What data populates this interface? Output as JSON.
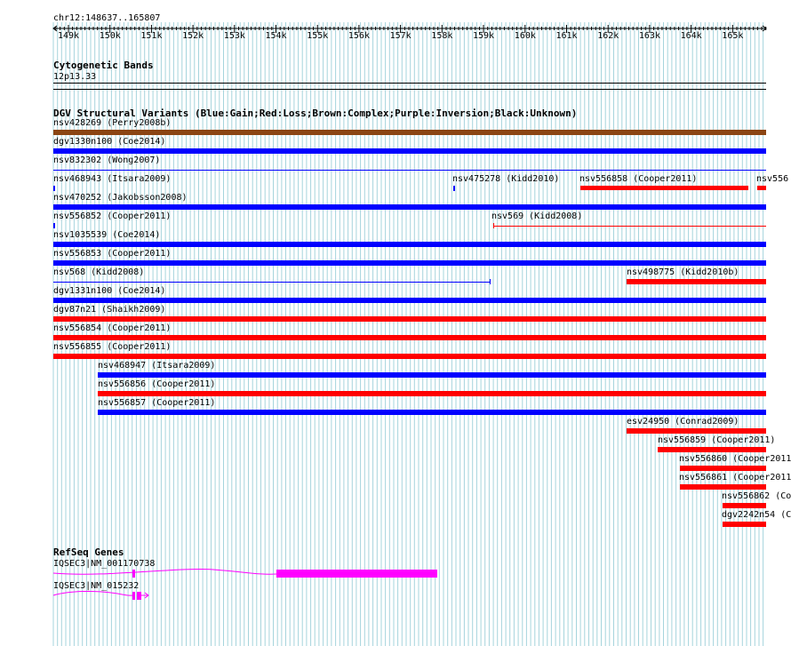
{
  "colors": {
    "gain": "#0000ff",
    "loss": "#ff0000",
    "complex": "#8b4513",
    "gene": "#ff00ff",
    "grid": "#a6d4dc"
  },
  "ruler": {
    "location": "chr12:148637..165807",
    "ticks": [
      "149k",
      "150k",
      "151k",
      "152k",
      "153k",
      "154k",
      "155k",
      "156k",
      "157k",
      "158k",
      "159k",
      "160k",
      "161k",
      "162k",
      "163k",
      "164k",
      "165k"
    ]
  },
  "cytoband": {
    "title": "Cytogenetic Bands",
    "band": "12p13.33"
  },
  "dgv": {
    "title": "DGV Structural Variants (Blue:Gain;Red:Loss;Brown:Complex;Purple:Inversion;Black:Unknown)",
    "variants": [
      {
        "label": "nsv428269 (Perry2008b)",
        "type": "complex"
      },
      {
        "label": "dgv1330n100 (Coe2014)",
        "type": "gain"
      },
      {
        "label": "nsv832302 (Wong2007)",
        "type": "gain"
      },
      {
        "label": "nsv468943 (Itsara2009)",
        "type": "gain"
      },
      {
        "label": "nsv475278 (Kidd2010)",
        "type": "gain"
      },
      {
        "label": "nsv556858 (Cooper2011)",
        "type": "loss"
      },
      {
        "label": "nsv556",
        "type": "loss"
      },
      {
        "label": "nsv470252 (Jakobsson2008)",
        "type": "gain"
      },
      {
        "label": "nsv556852 (Cooper2011)",
        "type": "gain"
      },
      {
        "label": "nsv569 (Kidd2008)",
        "type": "loss"
      },
      {
        "label": "nsv1035539 (Coe2014)",
        "type": "gain"
      },
      {
        "label": "nsv556853 (Cooper2011)",
        "type": "gain"
      },
      {
        "label": "nsv568 (Kidd2008)",
        "type": "gain"
      },
      {
        "label": "nsv498775 (Kidd2010b)",
        "type": "loss"
      },
      {
        "label": "dgv1331n100 (Coe2014)",
        "type": "gain"
      },
      {
        "label": "dgv87n21 (Shaikh2009)",
        "type": "loss"
      },
      {
        "label": "nsv556854 (Cooper2011)",
        "type": "loss"
      },
      {
        "label": "nsv556855 (Cooper2011)",
        "type": "loss"
      },
      {
        "label": "nsv468947 (Itsara2009)",
        "type": "gain"
      },
      {
        "label": "nsv556856 (Cooper2011)",
        "type": "loss"
      },
      {
        "label": "nsv556857 (Cooper2011)",
        "type": "gain"
      },
      {
        "label": "esv24950 (Conrad2009)",
        "type": "loss"
      },
      {
        "label": "nsv556859 (Cooper2011)",
        "type": "loss"
      },
      {
        "label": "nsv556860 (Cooper2011)",
        "type": "loss"
      },
      {
        "label": "nsv556861 (Cooper2011)",
        "type": "loss"
      },
      {
        "label": "nsv556862 (Co",
        "type": "loss"
      },
      {
        "label": "dgv2242n54 (C",
        "type": "loss"
      }
    ]
  },
  "refseq": {
    "title": "RefSeq Genes",
    "genes": [
      {
        "label": "IQSEC3|NM_001170738"
      },
      {
        "label": "IQSEC3|NM_015232"
      }
    ]
  }
}
